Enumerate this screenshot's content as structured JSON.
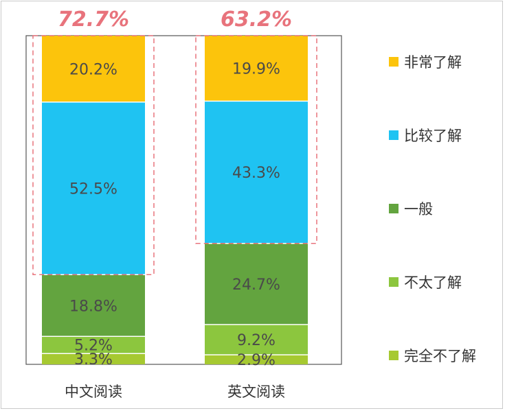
{
  "chart_data": {
    "type": "bar",
    "stacked": true,
    "categories": [
      "中文阅读",
      "英文阅读"
    ],
    "series": [
      {
        "name": "非常了解",
        "color": "#FCC40C",
        "values": [
          20.2,
          19.9
        ],
        "labels": [
          "20.2%",
          "19.9%"
        ]
      },
      {
        "name": "比较了解",
        "color": "#1FC3F2",
        "values": [
          52.5,
          43.3
        ],
        "labels": [
          "52.5%",
          "43.3%"
        ]
      },
      {
        "name": "一般",
        "color": "#63A43F",
        "values": [
          18.8,
          24.7
        ],
        "labels": [
          "18.8%",
          "24.7%"
        ]
      },
      {
        "name": "不太了解",
        "color": "#8CC63E",
        "values": [
          5.2,
          9.2
        ],
        "labels": [
          "5.2%",
          "9.2%"
        ]
      },
      {
        "name": "完全不了解",
        "color": "#A6C931",
        "values": [
          3.3,
          2.9
        ],
        "labels": [
          "3.3%",
          "2.9%"
        ]
      }
    ],
    "highlight_totals": [
      "72.7%",
      "63.2%"
    ],
    "highlight_color": "#E8737C",
    "ylim": [
      0,
      100
    ],
    "grid": false,
    "legend": "right"
  }
}
